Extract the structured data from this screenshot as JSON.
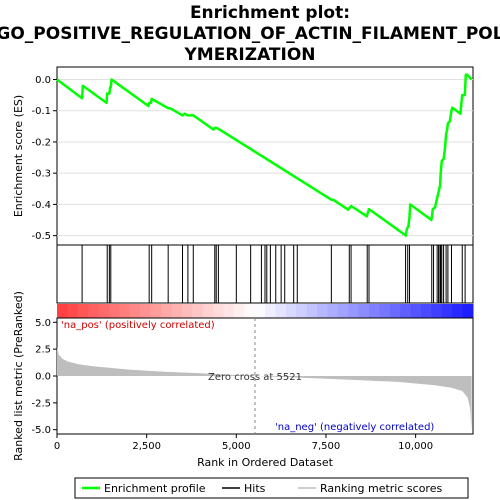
{
  "title_lines": [
    "Enrichment plot:",
    "GO_POSITIVE_REGULATION_OF_ACTIN_FILAMENT_POL",
    "YMERIZATION"
  ],
  "colors": {
    "enrichment": "#00ff00",
    "hits": "#000000",
    "metric_fill": "#bebebe",
    "pos_label": "#cc0000",
    "neg_label": "#0000cc",
    "zero_line": "#888888"
  },
  "legend": {
    "enrichment": "Enrichment profile",
    "hits": "Hits",
    "ranking": "Ranking metric scores"
  },
  "chart_data": [
    {
      "type": "line",
      "name": "enrichment-score",
      "ylabel": "Enrichment score (ES)",
      "xlim": [
        0,
        11600
      ],
      "ylim": [
        -0.53,
        0.04
      ],
      "yticks": [
        0.0,
        -0.1,
        -0.2,
        -0.3,
        -0.4,
        -0.5
      ],
      "ytick_labels": [
        "0.0",
        "-0.1",
        "-0.2",
        "-0.3",
        "-0.4",
        "-0.5"
      ],
      "grid": true,
      "points": [
        [
          0,
          0.0
        ],
        [
          700,
          -0.06
        ],
        [
          720,
          -0.02
        ],
        [
          1380,
          -0.075
        ],
        [
          1400,
          -0.045
        ],
        [
          1460,
          -0.045
        ],
        [
          1480,
          -0.025
        ],
        [
          1500,
          -0.025
        ],
        [
          1520,
          0.0
        ],
        [
          2550,
          -0.085
        ],
        [
          2570,
          -0.075
        ],
        [
          2620,
          -0.075
        ],
        [
          2640,
          -0.062
        ],
        [
          3100,
          -0.092
        ],
        [
          3150,
          -0.092
        ],
        [
          3500,
          -0.115
        ],
        [
          3560,
          -0.11
        ],
        [
          3650,
          -0.115
        ],
        [
          3800,
          -0.115
        ],
        [
          4360,
          -0.16
        ],
        [
          4400,
          -0.155
        ],
        [
          4440,
          -0.155
        ],
        [
          4500,
          -0.158
        ],
        [
          7650,
          -0.385
        ],
        [
          7700,
          -0.385
        ],
        [
          8120,
          -0.417
        ],
        [
          8200,
          -0.405
        ],
        [
          8640,
          -0.438
        ],
        [
          8700,
          -0.415
        ],
        [
          9730,
          -0.5
        ],
        [
          9750,
          -0.48
        ],
        [
          9800,
          -0.47
        ],
        [
          9830,
          -0.44
        ],
        [
          9850,
          -0.4
        ],
        [
          10440,
          -0.45
        ],
        [
          10480,
          -0.415
        ],
        [
          10540,
          -0.41
        ],
        [
          10600,
          -0.38
        ],
        [
          10640,
          -0.36
        ],
        [
          10680,
          -0.34
        ],
        [
          10700,
          -0.3
        ],
        [
          10730,
          -0.26
        ],
        [
          10780,
          -0.255
        ],
        [
          10820,
          -0.22
        ],
        [
          10850,
          -0.175
        ],
        [
          10880,
          -0.16
        ],
        [
          10900,
          -0.14
        ],
        [
          10950,
          -0.135
        ],
        [
          11000,
          -0.1
        ],
        [
          11020,
          -0.09
        ],
        [
          11250,
          -0.11
        ],
        [
          11300,
          -0.05
        ],
        [
          11370,
          -0.05
        ],
        [
          11400,
          0.015
        ],
        [
          11440,
          0.015
        ],
        [
          11560,
          0.0
        ]
      ]
    },
    {
      "type": "scatter",
      "name": "hits",
      "xlim": [
        0,
        11600
      ],
      "x": [
        700,
        1400,
        1460,
        1500,
        2570,
        2640,
        3100,
        3500,
        3650,
        3800,
        4400,
        4440,
        4500,
        5000,
        5400,
        5700,
        5800,
        5850,
        5950,
        6100,
        6250,
        6350,
        6600,
        6700,
        7650,
        8150,
        8200,
        8650,
        8700,
        9720,
        9780,
        9830,
        10450,
        10500,
        10600,
        10640,
        10680,
        10700,
        10730,
        10780,
        10850,
        10900,
        11000,
        11300,
        11380
      ]
    },
    {
      "type": "area",
      "name": "ranking-metric",
      "ylabel": "Ranked list metric (PreRanked)",
      "xlabel": "Rank in Ordered Dataset",
      "xlim": [
        0,
        11600
      ],
      "ylim": [
        -5.4,
        5.4
      ],
      "yticks": [
        5.0,
        2.5,
        0.0,
        -2.5,
        -5.0
      ],
      "ytick_labels": [
        "5.0",
        "2.5",
        "0.0",
        "-2.5",
        "-5.0"
      ],
      "xticks": [
        0,
        2500,
        5000,
        7500,
        10000
      ],
      "xtick_labels": [
        "0",
        "2,500",
        "5,000",
        "7,500",
        "10,000"
      ],
      "points": [
        [
          0,
          2.7
        ],
        [
          50,
          2.0
        ],
        [
          150,
          1.6
        ],
        [
          300,
          1.35
        ],
        [
          600,
          1.1
        ],
        [
          1000,
          0.9
        ],
        [
          2000,
          0.6
        ],
        [
          3000,
          0.4
        ],
        [
          4000,
          0.25
        ],
        [
          5000,
          0.08
        ],
        [
          5521,
          0.0
        ],
        [
          6500,
          -0.12
        ],
        [
          7500,
          -0.25
        ],
        [
          8500,
          -0.4
        ],
        [
          9500,
          -0.55
        ],
        [
          10000,
          -0.7
        ],
        [
          10500,
          -0.85
        ],
        [
          11000,
          -1.1
        ],
        [
          11300,
          -1.4
        ],
        [
          11450,
          -2.0
        ],
        [
          11520,
          -3.0
        ],
        [
          11560,
          -5.0
        ],
        [
          11560,
          0.0
        ]
      ],
      "zero_cross_label": "Zero cross at 5521",
      "zero_cross": 5521,
      "pos_label": "'na_pos' (positively correlated)",
      "neg_label": "'na_neg' (negatively correlated)"
    }
  ]
}
